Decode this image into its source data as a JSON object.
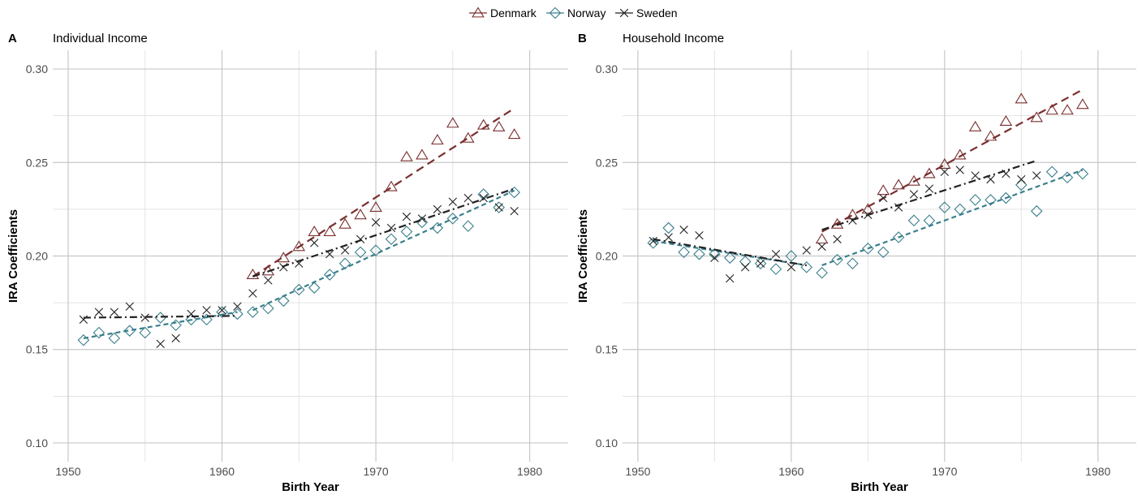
{
  "legend": {
    "items": [
      {
        "label": "Denmark",
        "color": "#7a2e2e",
        "shape": "triangle"
      },
      {
        "label": "Norway",
        "color": "#3a7f8c",
        "shape": "diamond"
      },
      {
        "label": "Sweden",
        "color": "#222222",
        "shape": "cross"
      }
    ]
  },
  "chart_data": [
    {
      "type": "scatter",
      "panel_letter": "A",
      "title": "Individual Income",
      "xlabel": "Birth Year",
      "ylabel": "IRA Coefficients",
      "xlim": [
        1949,
        1982.5
      ],
      "ylim": [
        0.09,
        0.31
      ],
      "xticks": [
        1950,
        1960,
        1970,
        1980
      ],
      "yticks": [
        0.1,
        0.15,
        0.2,
        0.25,
        0.3
      ],
      "ytick_labels": [
        "0.10",
        "0.15",
        "0.20",
        "0.25",
        "0.30"
      ],
      "grid": true,
      "series": [
        {
          "name": "Denmark",
          "color": "#7a2e2e",
          "marker": "triangle",
          "x": [
            1962,
            1963,
            1964,
            1965,
            1966,
            1967,
            1968,
            1969,
            1970,
            1971,
            1972,
            1973,
            1974,
            1975,
            1976,
            1977,
            1978,
            1979
          ],
          "y": [
            0.19,
            0.192,
            0.199,
            0.205,
            0.213,
            0.213,
            0.217,
            0.222,
            0.226,
            0.237,
            0.253,
            0.254,
            0.262,
            0.271,
            0.263,
            0.27,
            0.269,
            0.265
          ],
          "trend": [
            {
              "x": [
                1962,
                1979
              ],
              "y": [
                0.189,
                0.279
              ],
              "dash": "long"
            }
          ]
        },
        {
          "name": "Norway",
          "color": "#3a7f8c",
          "marker": "diamond",
          "x": [
            1951,
            1952,
            1953,
            1954,
            1955,
            1956,
            1957,
            1958,
            1959,
            1960,
            1961,
            1962,
            1963,
            1964,
            1965,
            1966,
            1967,
            1968,
            1969,
            1970,
            1971,
            1972,
            1973,
            1974,
            1975,
            1976,
            1977,
            1978,
            1979
          ],
          "y": [
            0.155,
            0.159,
            0.156,
            0.16,
            0.159,
            0.167,
            0.163,
            0.166,
            0.166,
            0.17,
            0.169,
            0.17,
            0.172,
            0.176,
            0.182,
            0.183,
            0.19,
            0.196,
            0.202,
            0.203,
            0.209,
            0.213,
            0.218,
            0.215,
            0.22,
            0.216,
            0.233,
            0.226,
            0.234
          ],
          "trend": [
            {
              "x": [
                1951,
                1961
              ],
              "y": [
                0.156,
                0.17
              ],
              "dash": "short"
            },
            {
              "x": [
                1962,
                1979
              ],
              "y": [
                0.171,
                0.235
              ],
              "dash": "short"
            }
          ]
        },
        {
          "name": "Sweden",
          "color": "#222222",
          "marker": "cross",
          "x": [
            1951,
            1952,
            1953,
            1954,
            1955,
            1956,
            1957,
            1958,
            1959,
            1960,
            1961,
            1962,
            1963,
            1964,
            1965,
            1966,
            1967,
            1968,
            1969,
            1970,
            1971,
            1972,
            1973,
            1974,
            1975,
            1976,
            1977,
            1978,
            1979
          ],
          "y": [
            0.166,
            0.17,
            0.17,
            0.173,
            0.167,
            0.153,
            0.156,
            0.169,
            0.171,
            0.171,
            0.173,
            0.18,
            0.187,
            0.194,
            0.196,
            0.207,
            0.201,
            0.203,
            0.209,
            0.218,
            0.215,
            0.221,
            0.22,
            0.225,
            0.229,
            0.231,
            0.231,
            0.226,
            0.224
          ],
          "trend": [
            {
              "x": [
                1951,
                1961
              ],
              "y": [
                0.167,
                0.168
              ],
              "dash": "dashdot"
            },
            {
              "x": [
                1962,
                1979
              ],
              "y": [
                0.189,
                0.236
              ],
              "dash": "dashdot"
            }
          ]
        }
      ]
    },
    {
      "type": "scatter",
      "panel_letter": "B",
      "title": "Household Income",
      "xlabel": "Birth Year",
      "ylabel": "IRA Coefficients",
      "xlim": [
        1949,
        1982.5
      ],
      "ylim": [
        0.09,
        0.31
      ],
      "xticks": [
        1950,
        1960,
        1970,
        1980
      ],
      "yticks": [
        0.1,
        0.15,
        0.2,
        0.25,
        0.3
      ],
      "ytick_labels": [
        "0.10",
        "0.15",
        "0.20",
        "0.25",
        "0.30"
      ],
      "grid": true,
      "series": [
        {
          "name": "Denmark",
          "color": "#7a2e2e",
          "marker": "triangle",
          "x": [
            1962,
            1963,
            1964,
            1965,
            1966,
            1967,
            1968,
            1969,
            1970,
            1971,
            1972,
            1973,
            1974,
            1975,
            1976,
            1977,
            1978,
            1979
          ],
          "y": [
            0.209,
            0.217,
            0.222,
            0.225,
            0.235,
            0.238,
            0.24,
            0.244,
            0.249,
            0.254,
            0.269,
            0.264,
            0.272,
            0.284,
            0.274,
            0.278,
            0.278,
            0.281
          ],
          "trend": [
            {
              "x": [
                1962,
                1979
              ],
              "y": [
                0.213,
                0.289
              ],
              "dash": "long"
            }
          ]
        },
        {
          "name": "Norway",
          "color": "#3a7f8c",
          "marker": "diamond",
          "x": [
            1951,
            1952,
            1953,
            1954,
            1955,
            1956,
            1957,
            1958,
            1959,
            1960,
            1961,
            1962,
            1963,
            1964,
            1965,
            1966,
            1967,
            1968,
            1969,
            1970,
            1971,
            1972,
            1973,
            1974,
            1975,
            1976,
            1977,
            1978,
            1979
          ],
          "y": [
            0.207,
            0.215,
            0.202,
            0.201,
            0.201,
            0.199,
            0.197,
            0.196,
            0.193,
            0.2,
            0.194,
            0.191,
            0.198,
            0.196,
            0.204,
            0.202,
            0.21,
            0.219,
            0.219,
            0.226,
            0.225,
            0.23,
            0.23,
            0.231,
            0.238,
            0.224,
            0.245,
            0.242,
            0.244
          ],
          "trend": [
            {
              "x": [
                1951,
                1961
              ],
              "y": [
                0.208,
                0.195
              ],
              "dash": "short"
            },
            {
              "x": [
                1962,
                1979
              ],
              "y": [
                0.195,
                0.246
              ],
              "dash": "short"
            }
          ]
        },
        {
          "name": "Sweden",
          "color": "#222222",
          "marker": "cross",
          "x": [
            1951,
            1952,
            1953,
            1954,
            1955,
            1956,
            1957,
            1958,
            1959,
            1960,
            1961,
            1962,
            1963,
            1964,
            1965,
            1966,
            1967,
            1968,
            1969,
            1970,
            1971,
            1972,
            1973,
            1974,
            1975,
            1976
          ],
          "y": [
            0.208,
            0.21,
            0.214,
            0.211,
            0.199,
            0.188,
            0.194,
            0.196,
            0.201,
            0.194,
            0.203,
            0.205,
            0.209,
            0.219,
            0.222,
            0.231,
            0.226,
            0.233,
            0.236,
            0.245,
            0.246,
            0.243,
            0.241,
            0.244,
            0.241,
            0.243
          ],
          "trend": [
            {
              "x": [
                1951,
                1961
              ],
              "y": [
                0.209,
                0.195
              ],
              "dash": "dashdot"
            },
            {
              "x": [
                1962,
                1976
              ],
              "y": [
                0.214,
                0.251
              ],
              "dash": "dashdot"
            }
          ]
        }
      ]
    }
  ]
}
